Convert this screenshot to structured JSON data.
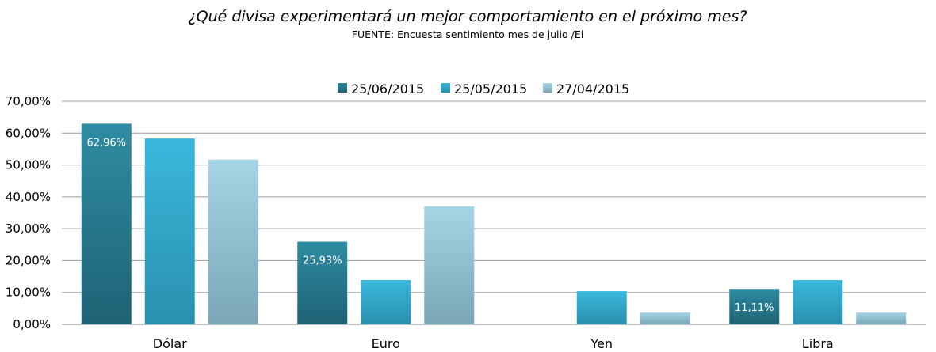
{
  "chart_data": {
    "type": "bar",
    "title": "¿Qué divisa experimentará un mejor comportamiento  en el próximo mes?",
    "subtitle": "FUENTE: Encuesta sentimiento mes de julio /Ei",
    "categories": [
      "Dólar",
      "Euro",
      "Yen",
      "Libra"
    ],
    "series": [
      {
        "name": "25/06/2015",
        "values": [
          62.96,
          25.93,
          0,
          11.11
        ],
        "data_labels": [
          "62,96%",
          "25,93%",
          "",
          "11,11%"
        ]
      },
      {
        "name": "25/05/2015",
        "values": [
          58.3,
          13.9,
          10.4,
          13.9
        ]
      },
      {
        "name": "27/04/2015",
        "values": [
          51.7,
          37.0,
          3.7,
          3.7
        ]
      }
    ],
    "ylim": [
      0,
      70
    ],
    "yticks": [
      "0,00%",
      "10,00%",
      "20,00%",
      "30,00%",
      "40,00%",
      "50,00%",
      "60,00%",
      "70,00%"
    ],
    "grid": true,
    "legend_position": "top-center",
    "colors": {
      "series0_top": "#2e8ca2",
      "series0_bottom": "#1f6275",
      "series1_top": "#3ab8dc",
      "series1_bottom": "#2a90ae",
      "series2_top": "#a5d5e5",
      "series2_bottom": "#7aa6b6"
    }
  }
}
